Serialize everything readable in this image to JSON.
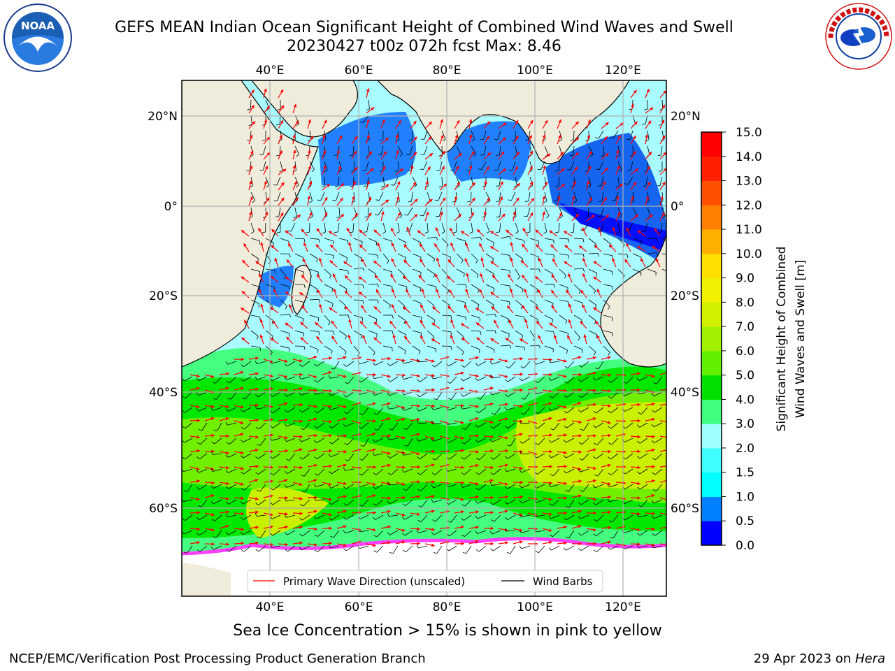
{
  "header": {
    "title_line1": "GEFS MEAN Indian Ocean Significant Height of Combined Wind Waves and Swell",
    "title_line2": "20230427 t00z 072h fcst   Max: 8.46"
  },
  "logos": {
    "left": "noaa-logo",
    "right": "nws-logo"
  },
  "map": {
    "lon_ticks_top": [
      "40°E",
      "60°E",
      "80°E",
      "100°E",
      "120°E"
    ],
    "lon_ticks_bottom": [
      "40°E",
      "60°E",
      "80°E",
      "100°E",
      "120°E"
    ],
    "lat_ticks_left": [
      "20°N",
      "0°",
      "20°S",
      "40°S",
      "60°S"
    ],
    "lat_ticks_right": [
      "20°N",
      "0°",
      "20°S",
      "40°S",
      "60°S"
    ],
    "lon_range": [
      20,
      130
    ],
    "lat_range": [
      -72,
      28
    ],
    "legend": {
      "primary_wave": "Primary Wave Direction (unscaled)",
      "wind_barbs": "Wind Barbs"
    },
    "colors": {
      "land": "#efecdc",
      "grid": "#b0b0b0",
      "arrow": "#ff0000",
      "barb": "#000000"
    }
  },
  "colorbar": {
    "label_line1": "Significant Height of Combined",
    "label_line2": "Wind Waves and Swell [m]",
    "ticks": [
      "0.0",
      "0.5",
      "1.0",
      "1.5",
      "2.0",
      "3.0",
      "4.0",
      "5.0",
      "6.0",
      "7.0",
      "8.0",
      "9.0",
      "10.0",
      "11.0",
      "12.0",
      "13.0",
      "14.0",
      "15.0"
    ],
    "colors": [
      "#0000ff",
      "#0080ff",
      "#00ffff",
      "#40ffff",
      "#a0ffff",
      "#40ff80",
      "#00e000",
      "#60f000",
      "#a0f000",
      "#d0f000",
      "#f0f000",
      "#ffe000",
      "#ffb000",
      "#ff8000",
      "#ff5000",
      "#ff2000",
      "#ff0000"
    ]
  },
  "footer": {
    "sea_ice_note": "Sea Ice Concentration > 15% is shown in pink to yellow",
    "credit_left": "NCEP/EMC/Verification Post Processing Product Generation Branch",
    "credit_right_date": "29 Apr 2023 on ",
    "credit_right_machine": "Hera"
  }
}
